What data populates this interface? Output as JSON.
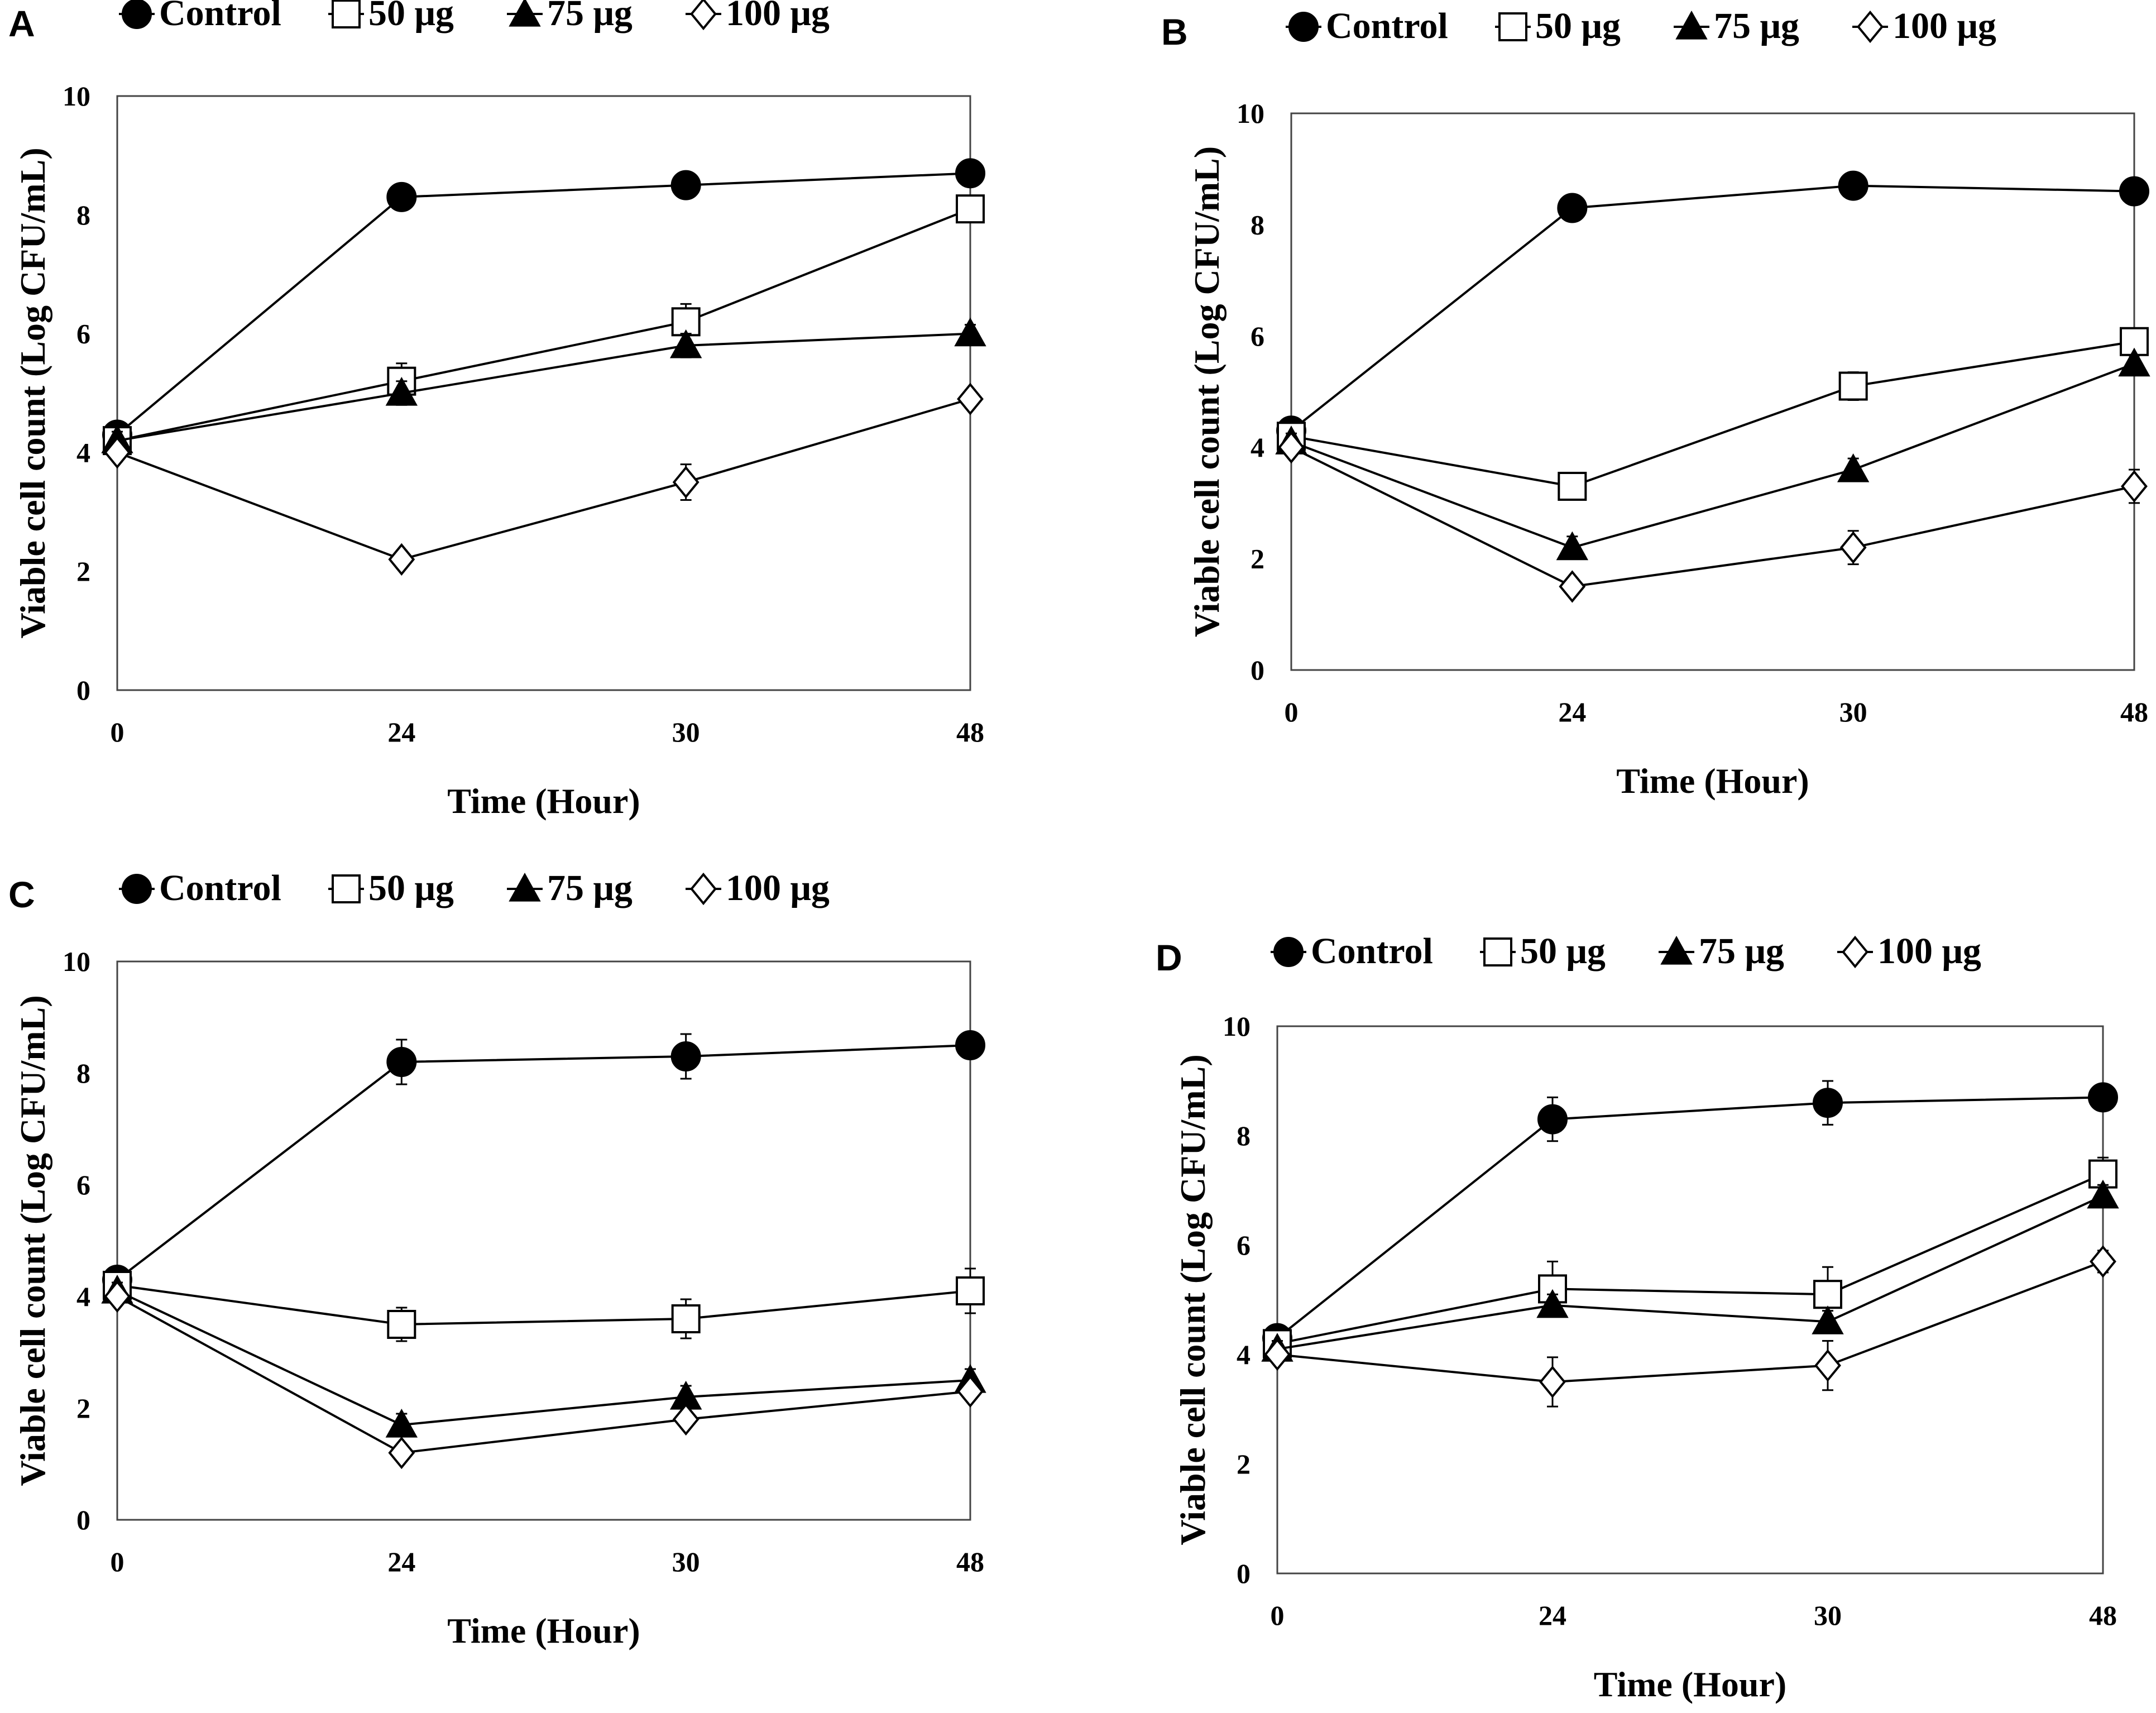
{
  "figure": {
    "colors": {
      "line": "#000000",
      "frame": "#444444",
      "open_marker": "#ffffff"
    },
    "series_style": [
      {
        "marker": "filled-circle"
      },
      {
        "marker": "open-square"
      },
      {
        "marker": "filled-triangle"
      },
      {
        "marker": "open-diamond"
      }
    ]
  },
  "chart_data": [
    {
      "panel": "A",
      "type": "line",
      "xlabel": "Time (Hour)",
      "ylabel": "Viable cell count (Log CFU/mL)",
      "x": [
        0,
        24,
        30,
        48
      ],
      "x_tick_labels": [
        "0",
        "24",
        "30",
        "48"
      ],
      "ylim": [
        0,
        10
      ],
      "y_ticks": [
        0,
        2,
        4,
        6,
        8,
        10
      ],
      "legend_position": "top",
      "series": [
        {
          "name": "Control",
          "values": [
            4.3,
            8.3,
            8.5,
            8.7
          ],
          "errors": [
            0.15,
            0.15,
            0.15,
            0.15
          ]
        },
        {
          "name": "50 μg",
          "values": [
            4.2,
            5.2,
            6.2,
            8.1
          ],
          "errors": [
            0.15,
            0.3,
            0.3,
            0.15
          ]
        },
        {
          "name": "75 μg",
          "values": [
            4.2,
            5.0,
            5.8,
            6.0
          ],
          "errors": [
            0.15,
            0.2,
            0.2,
            0.15
          ]
        },
        {
          "name": "100 μg",
          "values": [
            4.0,
            2.2,
            3.5,
            4.9
          ],
          "errors": [
            0.15,
            0.15,
            0.3,
            0.15
          ]
        }
      ]
    },
    {
      "panel": "B",
      "type": "line",
      "xlabel": "Time (Hour)",
      "ylabel": "Viable cell count (Log CFU/mL)",
      "x": [
        0,
        24,
        30,
        48
      ],
      "x_tick_labels": [
        "0",
        "24",
        "30",
        "48"
      ],
      "ylim": [
        0,
        10
      ],
      "y_ticks": [
        0,
        2,
        4,
        6,
        8,
        10
      ],
      "legend_position": "top",
      "series": [
        {
          "name": "Control",
          "values": [
            4.3,
            8.3,
            8.7,
            8.6
          ],
          "errors": [
            0.15,
            0.15,
            0.15,
            0.15
          ]
        },
        {
          "name": "50 μg",
          "values": [
            4.2,
            3.3,
            5.1,
            5.9
          ],
          "errors": [
            0.15,
            0.2,
            0.25,
            0.15
          ]
        },
        {
          "name": "75 μg",
          "values": [
            4.1,
            2.2,
            3.6,
            5.5
          ],
          "errors": [
            0.15,
            0.2,
            0.2,
            0.15
          ]
        },
        {
          "name": "100 μg",
          "values": [
            4.0,
            1.5,
            2.2,
            3.3
          ],
          "errors": [
            0.15,
            0.15,
            0.3,
            0.3
          ]
        }
      ]
    },
    {
      "panel": "C",
      "type": "line",
      "xlabel": "Time (Hour)",
      "ylabel": "Viable cell count (Log CFU/mL)",
      "x": [
        0,
        24,
        30,
        48
      ],
      "x_tick_labels": [
        "0",
        "24",
        "30",
        "48"
      ],
      "ylim": [
        0,
        10
      ],
      "y_ticks": [
        0,
        2,
        4,
        6,
        8,
        10
      ],
      "legend_position": "top",
      "series": [
        {
          "name": "Control",
          "values": [
            4.3,
            8.2,
            8.3,
            8.5
          ],
          "errors": [
            0.15,
            0.4,
            0.4,
            0.15
          ]
        },
        {
          "name": "50 μg",
          "values": [
            4.2,
            3.5,
            3.6,
            4.1
          ],
          "errors": [
            0.15,
            0.3,
            0.35,
            0.4
          ]
        },
        {
          "name": "75 μg",
          "values": [
            4.1,
            1.7,
            2.2,
            2.5
          ],
          "errors": [
            0.15,
            0.2,
            0.2,
            0.2
          ]
        },
        {
          "name": "100 μg",
          "values": [
            4.0,
            1.2,
            1.8,
            2.3
          ],
          "errors": [
            0.15,
            0.15,
            0.15,
            0.15
          ]
        }
      ]
    },
    {
      "panel": "D",
      "type": "line",
      "xlabel": "Time (Hour)",
      "ylabel": "Viable cell count (Log CFU/mL)",
      "x": [
        0,
        24,
        30,
        48
      ],
      "x_tick_labels": [
        "0",
        "24",
        "30",
        "48"
      ],
      "ylim": [
        0,
        10
      ],
      "y_ticks": [
        0,
        2,
        4,
        6,
        8,
        10
      ],
      "legend_position": "top",
      "series": [
        {
          "name": "Control",
          "values": [
            4.3,
            8.3,
            8.6,
            8.7
          ],
          "errors": [
            0.15,
            0.4,
            0.4,
            0.2
          ]
        },
        {
          "name": "50 μg",
          "values": [
            4.2,
            5.2,
            5.1,
            7.3
          ],
          "errors": [
            0.15,
            0.5,
            0.5,
            0.3
          ]
        },
        {
          "name": "75 μg",
          "values": [
            4.1,
            4.9,
            4.6,
            6.9
          ],
          "errors": [
            0.15,
            0.2,
            0.2,
            0.2
          ]
        },
        {
          "name": "100 μg",
          "values": [
            4.0,
            3.5,
            3.8,
            5.7
          ],
          "errors": [
            0.15,
            0.45,
            0.45,
            0.2
          ]
        }
      ]
    }
  ]
}
